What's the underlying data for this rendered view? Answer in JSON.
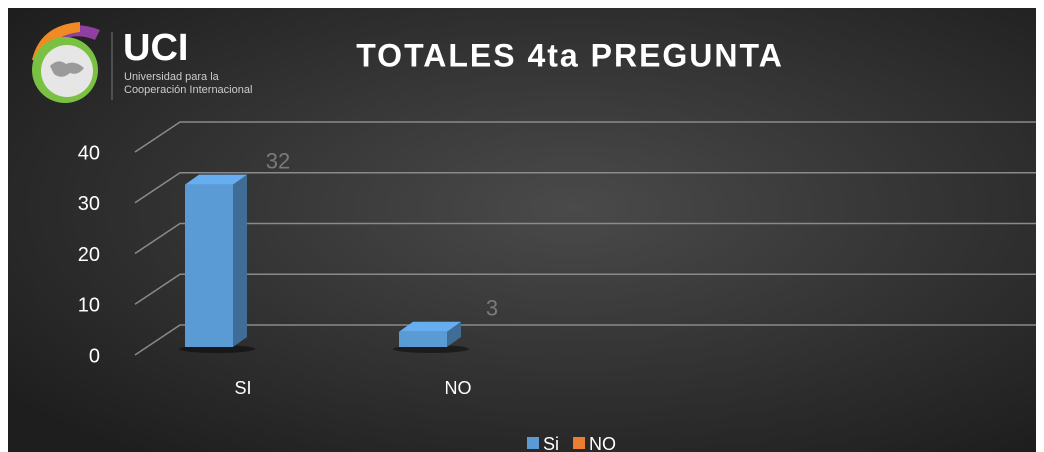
{
  "logo": {
    "name": "UCI",
    "lines": [
      "Universidad para la",
      "Cooperación Internacional"
    ]
  },
  "chart_data": {
    "type": "bar3d",
    "title": "TOTALES 4ta PREGUNTA",
    "categories": [
      "SI",
      "NO"
    ],
    "series": [
      {
        "name": "Si",
        "color": "#5b9bd5",
        "values": [
          32,
          3
        ]
      },
      {
        "name": "NO",
        "color": "#ed7d31",
        "values": [
          null,
          null
        ]
      }
    ],
    "ylim": [
      0,
      40
    ],
    "yticks": [
      0,
      10,
      20,
      30,
      40
    ],
    "grid": true,
    "legend": "bottom"
  }
}
